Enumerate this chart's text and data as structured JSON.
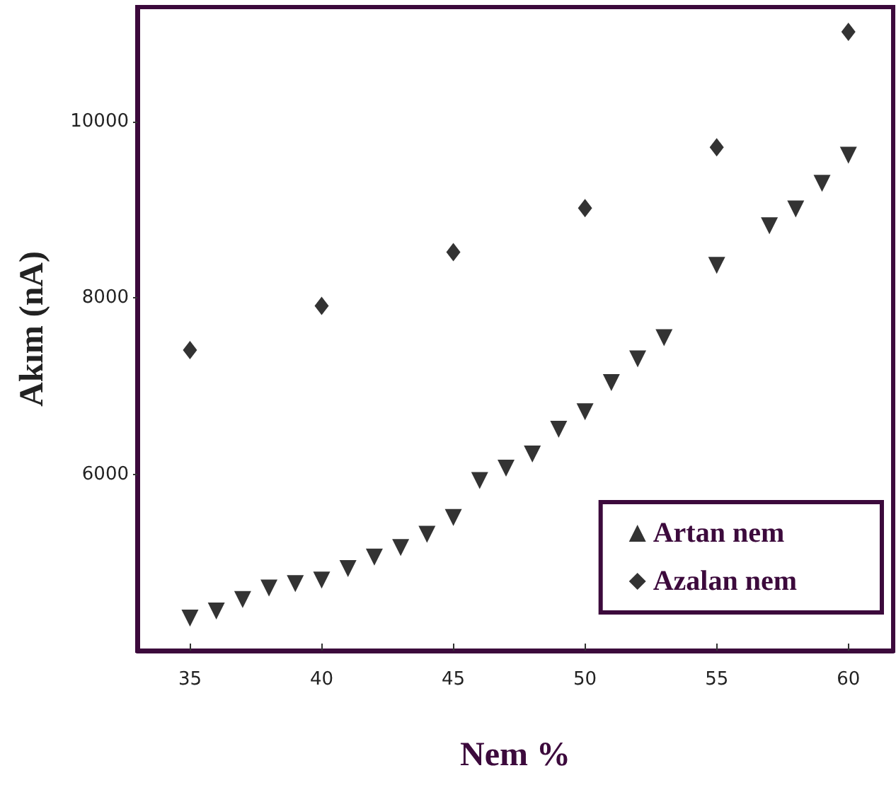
{
  "chart_data": {
    "type": "scatter",
    "xlabel": "Nem %",
    "ylabel": "Akım (nA)",
    "xlim": [
      33,
      61.7
    ],
    "xticks": [
      35,
      40,
      45,
      50,
      55,
      60
    ],
    "ylim": [
      4000,
      11300
    ],
    "yticks": [
      6000,
      8000,
      10000
    ],
    "grid": false,
    "legend": "bottom right",
    "series": [
      {
        "name": "Artan nem",
        "color": "#000000",
        "marker": "triangle",
        "x": [
          35,
          36,
          37,
          38,
          39,
          40,
          41,
          42,
          43,
          44,
          45,
          46,
          47,
          48,
          49,
          50,
          51,
          52,
          53,
          55,
          57,
          58,
          59,
          60
        ],
        "values": [
          4370,
          4450,
          4580,
          4710,
          4760,
          4800,
          4930,
          5060,
          5170,
          5320,
          5510,
          5930,
          6070,
          6230,
          6510,
          6710,
          7040,
          7310,
          7550,
          8370,
          8820,
          9010,
          9300,
          9620
        ]
      },
      {
        "name": "Azalan nem",
        "color": "#000000",
        "marker": "diamond",
        "x": [
          35,
          40,
          45,
          50,
          55,
          60
        ],
        "values": [
          7410,
          7910,
          8520,
          9020,
          9710,
          11020
        ]
      }
    ]
  }
}
